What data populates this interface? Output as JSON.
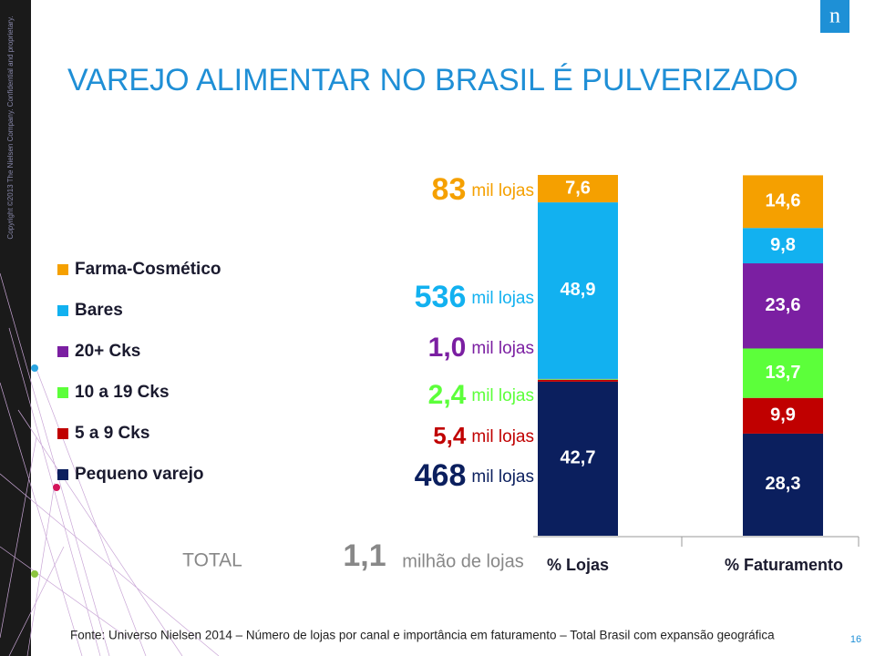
{
  "copyright": "Copyright ©2013 The Nielsen Company. Confidential and proprietary.",
  "logo": "n",
  "chart_data": {
    "type": "stacked-bar",
    "title": "VAREJO ALIMENTAR NO BRASIL É PULVERIZADO",
    "categories": [
      "% Lojas",
      "% Faturamento"
    ],
    "ylim": [
      0,
      100
    ],
    "series": [
      {
        "name": "Pequeno varejo",
        "color": "#0b1f5e",
        "values": [
          42.7,
          28.3
        ],
        "value_labels": [
          "42,7",
          "28,3"
        ],
        "count": "468",
        "count_unit": "mil lojas"
      },
      {
        "name": "5 a 9 Cks",
        "color": "#c00000",
        "values": [
          0.5,
          9.9
        ],
        "value_labels": [
          null,
          "9,9"
        ],
        "count": "5,4",
        "count_unit": "mil lojas"
      },
      {
        "name": "10 a 19 Cks",
        "color": "#5cff3a",
        "values": [
          0.2,
          13.7
        ],
        "value_labels": [
          null,
          "13,7"
        ],
        "count": "2,4",
        "count_unit": "mil lojas"
      },
      {
        "name": "20+ Cks",
        "color": "#7b1fa2",
        "values": [
          0.1,
          23.6
        ],
        "value_labels": [
          null,
          "23,6"
        ],
        "count": "1,0",
        "count_unit": "mil lojas"
      },
      {
        "name": "Bares",
        "color": "#12b1f0",
        "values": [
          48.9,
          9.8
        ],
        "value_labels": [
          "48,9",
          "9,8"
        ],
        "count": "536",
        "count_unit": "mil lojas"
      },
      {
        "name": "Farma-Cosmético",
        "color": "#f5a000",
        "values": [
          7.6,
          14.6
        ],
        "value_labels": [
          "7,6",
          "14,6"
        ],
        "count": "83",
        "count_unit": "mil lojas"
      }
    ],
    "total": {
      "label": "TOTAL",
      "number": "1,1",
      "unit": "milhão de lojas"
    },
    "source": "Fonte: Universo Nielsen 2014 – Número de lojas por canal e importância em faturamento – Total Brasil com expansão geográfica"
  },
  "page_number": "16"
}
